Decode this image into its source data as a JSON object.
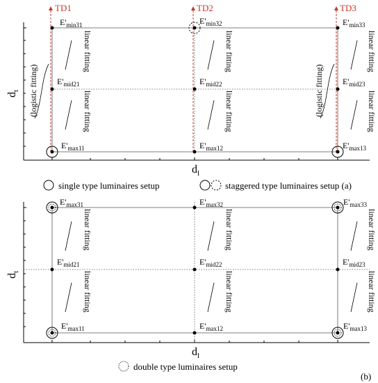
{
  "panel_a": {
    "td_labels": [
      "TD1",
      "TD2",
      "TD3"
    ],
    "axis_y": {
      "main": "d",
      "sub": "t"
    },
    "axis_x": {
      "main": "d",
      "sub": "l"
    },
    "points": {
      "min31": {
        "main": "E'",
        "sub": "min31"
      },
      "min32": {
        "main": "E'",
        "sub": "min32"
      },
      "min33": {
        "main": "E'",
        "sub": "min33"
      },
      "mid21": {
        "main": "E'",
        "sub": "mid21"
      },
      "mid22": {
        "main": "E'",
        "sub": "mid22"
      },
      "mid23": {
        "main": "E'",
        "sub": "mid23"
      },
      "max11": {
        "main": "E'",
        "sub": "max11"
      },
      "max12": {
        "main": "E'",
        "sub": "max12"
      },
      "max13": {
        "main": "E'",
        "sub": "max13"
      }
    },
    "fit_labels": {
      "linear": "linear fitting",
      "logistic": "(logistic fitting)"
    },
    "legend": {
      "single": "single type luminaires setup",
      "staggered": "staggered type luminaires setup (a)"
    }
  },
  "panel_b": {
    "axis_y": {
      "main": "d",
      "sub": "t"
    },
    "axis_x": {
      "main": "d",
      "sub": "l"
    },
    "points": {
      "max31": {
        "main": "E'",
        "sub": "max31"
      },
      "max32": {
        "main": "E'",
        "sub": "max32"
      },
      "max33": {
        "main": "E'",
        "sub": "max33"
      },
      "mid21": {
        "main": "E'",
        "sub": "mid21"
      },
      "mid22": {
        "main": "E'",
        "sub": "mid22"
      },
      "mid23": {
        "main": "E'",
        "sub": "mid23"
      },
      "max11": {
        "main": "E'",
        "sub": "max11"
      },
      "max12": {
        "main": "E'",
        "sub": "max12"
      },
      "max13": {
        "main": "E'",
        "sub": "max13"
      }
    },
    "fit_labels": {
      "linear": "linear fitting"
    },
    "legend": {
      "double": "double type luminaires setup"
    },
    "panel_label": "(b)"
  }
}
